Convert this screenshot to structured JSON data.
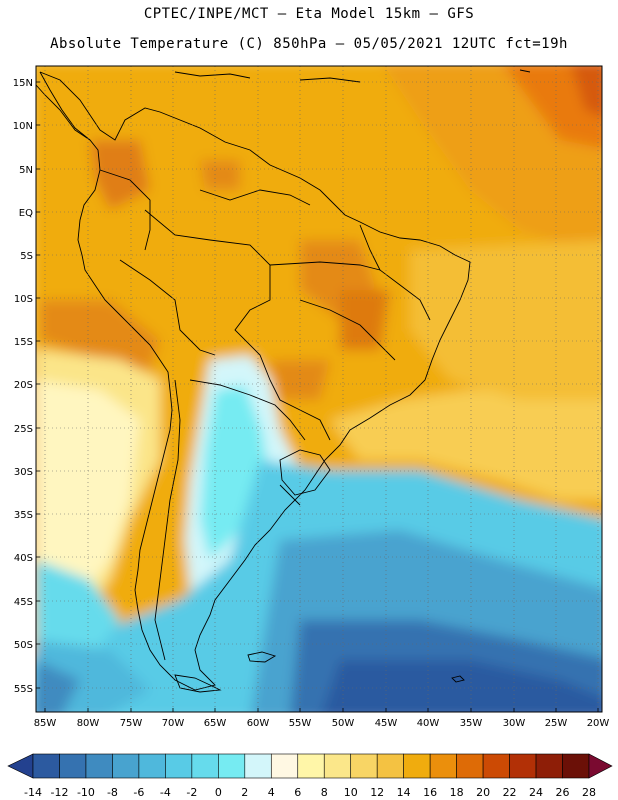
{
  "title_line1": "CPTEC/INPE/MCT –  Eta Model 15km – GFS",
  "title_line2": "Absolute Temperature (C) 850hPa – 05/05/2021 12UTC fct=19h",
  "map": {
    "lat_labels": [
      "15N",
      "10N",
      "5N",
      "EQ",
      "5S",
      "10S",
      "15S",
      "20S",
      "25S",
      "30S",
      "35S",
      "40S",
      "45S",
      "50S",
      "55S"
    ],
    "lon_labels": [
      "85W",
      "80W",
      "75W",
      "70W",
      "65W",
      "60W",
      "55W",
      "50W",
      "45W",
      "40W",
      "35W",
      "30W",
      "25W",
      "20W"
    ]
  },
  "colorbar": {
    "labels": [
      "-14",
      "-12",
      "-10",
      "-8",
      "-6",
      "-4",
      "-2",
      "0",
      "2",
      "4",
      "6",
      "8",
      "10",
      "12",
      "14",
      "16",
      "18",
      "20",
      "22",
      "24",
      "26",
      "28"
    ],
    "colors": [
      "#23418f",
      "#2c5aa0",
      "#3572b0",
      "#3f8bc0",
      "#48a3cf",
      "#4fb8dc",
      "#58cbe6",
      "#66dbec",
      "#76ebf2",
      "#d3f6fa",
      "#fff8e3",
      "#fff6a8",
      "#fbe78a",
      "#f8d565",
      "#f4c242",
      "#f0ac0e",
      "#eb8f0c",
      "#de6b06",
      "#cc4a04",
      "#b23006",
      "#8e1e07",
      "#6b1007",
      "#7a0a30"
    ]
  }
}
